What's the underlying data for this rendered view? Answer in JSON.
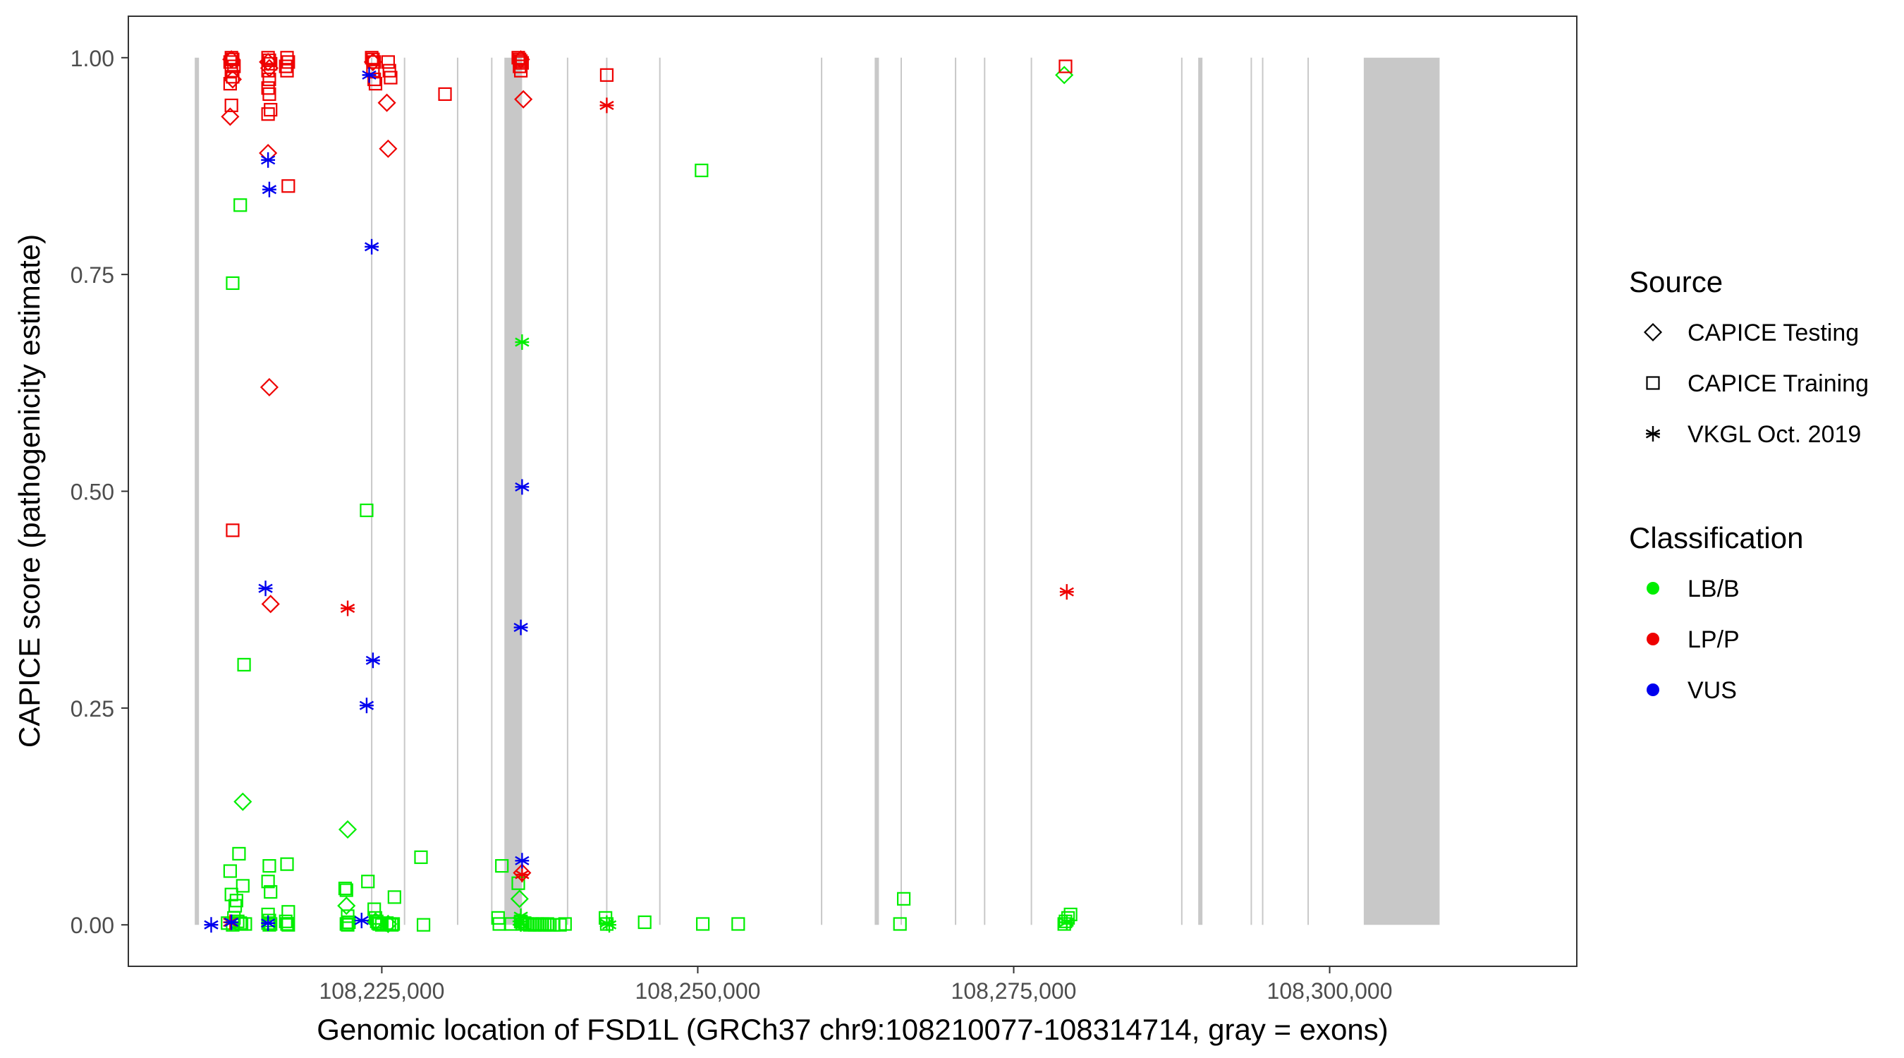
{
  "chart_data": {
    "type": "scatter",
    "title": "",
    "xlabel": "Genomic location of FSD1L (GRCh37 chr9:108210077-108314714, gray = exons)",
    "ylabel": "CAPICE score (pathogenicity estimate)",
    "xlim": [
      108205000,
      108319500
    ],
    "ylim": [
      -0.047,
      1.047
    ],
    "x_ticks": [
      108225000,
      108250000,
      108275000,
      108300000
    ],
    "x_tick_labels": [
      "108,225,000",
      "108,250,000",
      "108,275,000",
      "108,300,000"
    ],
    "y_ticks": [
      0,
      0.25,
      0.5,
      0.75,
      1
    ],
    "y_tick_labels": [
      "0.00",
      "0.25",
      "0.50",
      "0.75",
      "1.00"
    ],
    "grid": false,
    "legend_position": "right",
    "legend": {
      "source_title": "Source",
      "source_items": [
        {
          "label": "CAPICE Testing",
          "shape": "diamond"
        },
        {
          "label": "CAPICE Training",
          "shape": "square"
        },
        {
          "label": "VKGL Oct. 2019",
          "shape": "asterisk"
        }
      ],
      "class_title": "Classification",
      "class_items": [
        {
          "label": "LB/B",
          "color": "#00ee00"
        },
        {
          "label": "LP/P",
          "color": "#ee0000"
        },
        {
          "label": "VUS",
          "color": "#0000ee"
        }
      ]
    },
    "exon_color": "#c8c8c8",
    "intron_line_color": "#c8c8c8",
    "exons": [
      [
        108210200,
        108210500
      ],
      [
        108234700,
        108236100
      ],
      [
        108264000,
        108264200
      ],
      [
        108289600,
        108289900
      ],
      [
        108302700,
        108308700
      ]
    ],
    "intron_lines": [
      108224200,
      108226800,
      108231000,
      108233700,
      108239700,
      108242800,
      108247000,
      108259800,
      108266100,
      108270400,
      108272700,
      108276400,
      108288300,
      108293800,
      108294700,
      108298300
    ],
    "series": [
      {
        "name": "LB/B",
        "color": "#00ee00",
        "shape": "square",
        "points": [
          [
            108213200,
            0.74
          ],
          [
            108213800,
            0.83
          ],
          [
            108214100,
            0.3
          ],
          [
            108213000,
            0.062
          ],
          [
            108213700,
            0.082
          ],
          [
            108213100,
            0.035
          ],
          [
            108214000,
            0.045
          ],
          [
            108213500,
            0.028
          ],
          [
            108213400,
            0.022
          ],
          [
            108213300,
            0.008
          ],
          [
            108213600,
            0.004
          ],
          [
            108212800,
            0.002
          ],
          [
            108213900,
            0.001
          ],
          [
            108213200,
            0
          ],
          [
            108213800,
            0.002
          ],
          [
            108214200,
            0.001
          ],
          [
            108216100,
            0.068
          ],
          [
            108216000,
            0.05
          ],
          [
            108216200,
            0.038
          ],
          [
            108216000,
            0.012
          ],
          [
            108216100,
            0.005
          ],
          [
            108216000,
            0.002
          ],
          [
            108216200,
            0.001
          ],
          [
            108216100,
            0
          ],
          [
            108217500,
            0.07
          ],
          [
            108217600,
            0.015
          ],
          [
            108217400,
            0.004
          ],
          [
            108217500,
            0.001
          ],
          [
            108217600,
            0
          ],
          [
            108222200,
            0.04
          ],
          [
            108222100,
            0.042
          ],
          [
            108222300,
            0.01
          ],
          [
            108222400,
            0.003
          ],
          [
            108222200,
            0.001
          ],
          [
            108222300,
            0
          ],
          [
            108223800,
            0.478
          ],
          [
            108223900,
            0.05
          ],
          [
            108224400,
            0.018
          ],
          [
            108224500,
            0.008
          ],
          [
            108224600,
            0.004
          ],
          [
            108224700,
            0.002
          ],
          [
            108224800,
            0.001
          ],
          [
            108225000,
            0
          ],
          [
            108225400,
            0.002
          ],
          [
            108225600,
            0.001
          ],
          [
            108225800,
            0
          ],
          [
            108226000,
            0.032
          ],
          [
            108225900,
            0.001
          ],
          [
            108228100,
            0.078
          ],
          [
            108228300,
            0
          ],
          [
            108234200,
            0.008
          ],
          [
            108234300,
            0.001
          ],
          [
            108234500,
            0.068
          ],
          [
            108235200,
            0.001
          ],
          [
            108235800,
            0.048
          ],
          [
            108236000,
            0.004
          ],
          [
            108236100,
            0.001
          ],
          [
            108236300,
            0.002
          ],
          [
            108236500,
            0.001
          ],
          [
            108236700,
            0
          ],
          [
            108236900,
            0.001
          ],
          [
            108237100,
            0
          ],
          [
            108237300,
            0.001
          ],
          [
            108237500,
            0
          ],
          [
            108237700,
            0.001
          ],
          [
            108237900,
            0
          ],
          [
            108238100,
            0.001
          ],
          [
            108238300,
            0
          ],
          [
            108238600,
            0
          ],
          [
            108239100,
            0
          ],
          [
            108239500,
            0.001
          ],
          [
            108242700,
            0.008
          ],
          [
            108242800,
            0.001
          ],
          [
            108245800,
            0.003
          ],
          [
            108250300,
            0.87
          ],
          [
            108250400,
            0.001
          ],
          [
            108253200,
            0.001
          ],
          [
            108266000,
            0.001
          ],
          [
            108266300,
            0.03
          ],
          [
            108279500,
            0.012
          ],
          [
            108279300,
            0.008
          ],
          [
            108279100,
            0.004
          ],
          [
            108279000,
            0.001
          ]
        ]
      },
      {
        "name": "LB/B",
        "color": "#00ee00",
        "shape": "diamond",
        "points": [
          [
            108214000,
            0.142
          ],
          [
            108222300,
            0.11
          ],
          [
            108222200,
            0.022
          ],
          [
            108224500,
            0.004
          ],
          [
            108225500,
            0.001
          ],
          [
            108235900,
            0.03
          ],
          [
            108279000,
            0.98
          ]
        ]
      },
      {
        "name": "LB/B",
        "color": "#00ee00",
        "shape": "asterisk",
        "points": [
          [
            108236100,
            0.672
          ],
          [
            108236000,
            0.01
          ],
          [
            108235900,
            0.004
          ],
          [
            108236000,
            0.001
          ],
          [
            108242800,
            0.002
          ],
          [
            108243000,
            0
          ],
          [
            108279200,
            0.003
          ]
        ]
      },
      {
        "name": "LP/P",
        "color": "#ee0000",
        "shape": "square",
        "points": [
          [
            108213100,
            1.0
          ],
          [
            108213200,
            0.998
          ],
          [
            108213000,
            0.995
          ],
          [
            108213300,
            0.99
          ],
          [
            108213100,
            0.985
          ],
          [
            108213200,
            0.978
          ],
          [
            108213000,
            0.97
          ],
          [
            108213100,
            0.945
          ],
          [
            108213200,
            0.455
          ],
          [
            108216000,
            1.0
          ],
          [
            108216100,
            0.997
          ],
          [
            108216200,
            0.993
          ],
          [
            108216000,
            0.985
          ],
          [
            108216100,
            0.975
          ],
          [
            108216000,
            0.965
          ],
          [
            108216100,
            0.958
          ],
          [
            108216200,
            0.94
          ],
          [
            108216000,
            0.935
          ],
          [
            108217500,
            1.0
          ],
          [
            108217600,
            0.995
          ],
          [
            108217400,
            0.99
          ],
          [
            108217500,
            0.985
          ],
          [
            108217600,
            0.852
          ],
          [
            108224200,
            1.0
          ],
          [
            108224300,
            0.998
          ],
          [
            108224400,
            0.995
          ],
          [
            108224300,
            0.985
          ],
          [
            108224400,
            0.975
          ],
          [
            108224500,
            0.97
          ],
          [
            108225500,
            0.995
          ],
          [
            108225600,
            0.985
          ],
          [
            108225700,
            0.977
          ],
          [
            108230000,
            0.958
          ],
          [
            108235800,
            1.0
          ],
          [
            108235900,
            0.998
          ],
          [
            108236000,
            0.996
          ],
          [
            108236100,
            0.994
          ],
          [
            108235900,
            0.99
          ],
          [
            108236000,
            0.985
          ],
          [
            108242800,
            0.98
          ],
          [
            108279100,
            0.99
          ]
        ]
      },
      {
        "name": "LP/P",
        "color": "#ee0000",
        "shape": "diamond",
        "points": [
          [
            108213100,
            0.998
          ],
          [
            108213200,
            0.975
          ],
          [
            108213000,
            0.932
          ],
          [
            108216000,
            0.89
          ],
          [
            108216100,
            0.62
          ],
          [
            108216200,
            0.37
          ],
          [
            108216000,
            0.995
          ],
          [
            108216100,
            0.988
          ],
          [
            108224300,
            0.995
          ],
          [
            108225400,
            0.948
          ],
          [
            108225500,
            0.895
          ],
          [
            108236000,
            0.998
          ],
          [
            108236200,
            0.952
          ],
          [
            108236100,
            0.06
          ]
        ]
      },
      {
        "name": "LP/P",
        "color": "#ee0000",
        "shape": "asterisk",
        "points": [
          [
            108222300,
            0.365
          ],
          [
            108242800,
            0.945
          ],
          [
            108279200,
            0.384
          ],
          [
            108236100,
            0.058
          ],
          [
            108213000,
            0.003
          ]
        ]
      },
      {
        "name": "VUS",
        "color": "#0000ee",
        "shape": "asterisk",
        "points": [
          [
            108211500,
            0
          ],
          [
            108213100,
            0.003
          ],
          [
            108216000,
            0.882
          ],
          [
            108216100,
            0.848
          ],
          [
            108215800,
            0.388
          ],
          [
            108216000,
            0.002
          ],
          [
            108224000,
            0.98
          ],
          [
            108224200,
            0.782
          ],
          [
            108224300,
            0.305
          ],
          [
            108223800,
            0.253
          ],
          [
            108223400,
            0.005
          ],
          [
            108236100,
            0.505
          ],
          [
            108236000,
            0.343
          ],
          [
            108236100,
            0.074
          ]
        ]
      }
    ]
  }
}
